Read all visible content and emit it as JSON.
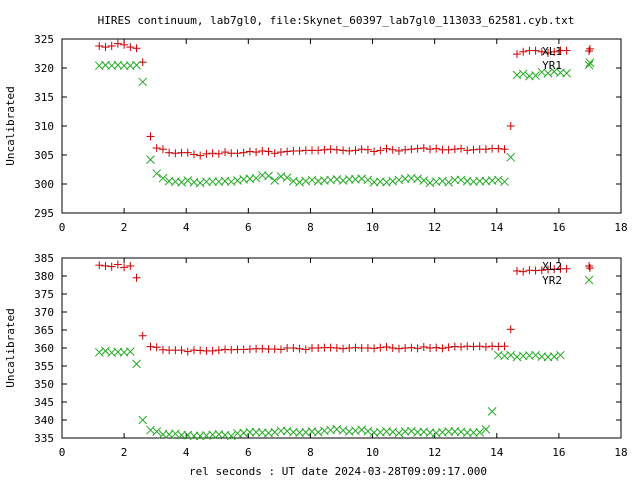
{
  "title": "HIRES continuum, lab7gl0, file:Skynet_60397_lab7gl0_113033_62581.cyb.txt",
  "xlabel": "rel seconds : UT date 2024-03-28T09:09:17.000",
  "colors": {
    "red": "#cc0000",
    "green": "#22aa22"
  },
  "chart_data": [
    {
      "type": "scatter",
      "ylabel": "Uncalibrated",
      "xlim": [
        0,
        18
      ],
      "ylim": [
        295,
        325
      ],
      "xticks": [
        "0",
        "2",
        "4",
        "6",
        "8",
        "10",
        "12",
        "14",
        "16",
        "18"
      ],
      "yticks": [
        "295",
        "300",
        "305",
        "310",
        "315",
        "320",
        "325"
      ],
      "legend_position": "top-right",
      "series": [
        {
          "name": "XL1",
          "marker": "+",
          "color": "#cc0000",
          "x": [
            1.2,
            1.4,
            1.6,
            1.8,
            2.0,
            2.2,
            2.4,
            2.6,
            2.85,
            3.05,
            3.25,
            3.45,
            3.65,
            3.85,
            4.05,
            4.25,
            4.45,
            4.65,
            4.85,
            5.05,
            5.25,
            5.45,
            5.65,
            5.85,
            6.05,
            6.25,
            6.45,
            6.65,
            6.85,
            7.05,
            7.25,
            7.45,
            7.65,
            7.85,
            8.05,
            8.25,
            8.45,
            8.65,
            8.85,
            9.05,
            9.25,
            9.45,
            9.65,
            9.85,
            10.05,
            10.25,
            10.45,
            10.65,
            10.85,
            11.05,
            11.25,
            11.45,
            11.65,
            11.85,
            12.05,
            12.25,
            12.45,
            12.65,
            12.85,
            13.05,
            13.25,
            13.45,
            13.65,
            13.85,
            14.05,
            14.25,
            14.45,
            14.65,
            14.85,
            15.05,
            15.25,
            15.45,
            15.65,
            15.85,
            16.05,
            16.25,
            17.0
          ],
          "y": [
            323.8,
            323.6,
            323.8,
            324.2,
            324.0,
            323.6,
            323.4,
            321.0,
            308.2,
            306.2,
            306.0,
            305.4,
            305.3,
            305.4,
            305.4,
            305.1,
            304.9,
            305.2,
            305.3,
            305.2,
            305.5,
            305.3,
            305.3,
            305.4,
            305.6,
            305.5,
            305.7,
            305.6,
            305.3,
            305.5,
            305.6,
            305.7,
            305.7,
            305.8,
            305.8,
            305.8,
            305.9,
            306.0,
            305.9,
            305.8,
            305.7,
            305.8,
            306.0,
            305.9,
            305.6,
            305.8,
            306.1,
            305.9,
            305.7,
            305.9,
            306.0,
            306.1,
            306.2,
            306.0,
            306.1,
            305.9,
            305.9,
            306.0,
            306.1,
            305.8,
            305.9,
            306.0,
            306.0,
            306.1,
            306.1,
            306.0,
            310.0,
            322.4,
            322.8,
            323.0,
            323.0,
            322.8,
            322.6,
            322.8,
            323.0,
            323.0,
            323.3
          ]
        },
        {
          "name": "YR1",
          "marker": "x",
          "color": "#22aa22",
          "x": [
            1.2,
            1.4,
            1.6,
            1.8,
            2.0,
            2.2,
            2.4,
            2.6,
            2.85,
            3.05,
            3.25,
            3.45,
            3.65,
            3.85,
            4.05,
            4.25,
            4.45,
            4.65,
            4.85,
            5.05,
            5.25,
            5.45,
            5.65,
            5.85,
            6.05,
            6.25,
            6.45,
            6.65,
            6.85,
            7.05,
            7.25,
            7.45,
            7.65,
            7.85,
            8.05,
            8.25,
            8.45,
            8.65,
            8.85,
            9.05,
            9.25,
            9.45,
            9.65,
            9.85,
            10.05,
            10.25,
            10.45,
            10.65,
            10.85,
            11.05,
            11.25,
            11.45,
            11.65,
            11.85,
            12.05,
            12.25,
            12.45,
            12.65,
            12.85,
            13.05,
            13.25,
            13.45,
            13.65,
            13.85,
            14.05,
            14.25,
            14.45,
            14.65,
            14.85,
            15.05,
            15.25,
            15.45,
            15.65,
            15.85,
            16.05,
            16.25,
            17.0
          ],
          "y": [
            320.4,
            320.5,
            320.4,
            320.5,
            320.4,
            320.4,
            320.5,
            317.6,
            304.2,
            301.8,
            301.0,
            300.5,
            300.4,
            300.3,
            300.6,
            300.3,
            300.2,
            300.4,
            300.4,
            300.4,
            300.5,
            300.4,
            300.6,
            300.8,
            300.9,
            301.0,
            301.5,
            301.4,
            300.6,
            301.3,
            301.1,
            300.5,
            300.3,
            300.5,
            300.7,
            300.5,
            300.6,
            300.7,
            300.8,
            300.6,
            300.8,
            300.8,
            300.9,
            300.7,
            300.3,
            300.4,
            300.3,
            300.5,
            300.7,
            300.9,
            301.0,
            300.9,
            300.6,
            300.2,
            300.4,
            300.5,
            300.3,
            300.7,
            300.7,
            300.5,
            300.4,
            300.5,
            300.5,
            300.6,
            300.7,
            300.4,
            304.6,
            318.8,
            319.0,
            318.6,
            318.7,
            319.3,
            319.1,
            319.4,
            319.2,
            319.1,
            320.9
          ]
        }
      ]
    },
    {
      "type": "scatter",
      "ylabel": "Uncalibrated",
      "xlim": [
        0,
        18
      ],
      "ylim": [
        335,
        385
      ],
      "xticks": [
        "0",
        "2",
        "4",
        "6",
        "8",
        "10",
        "12",
        "14",
        "16",
        "18"
      ],
      "yticks": [
        "335",
        "340",
        "345",
        "350",
        "355",
        "360",
        "365",
        "370",
        "375",
        "380",
        "385"
      ],
      "legend_position": "top-right",
      "series": [
        {
          "name": "XL2",
          "marker": "+",
          "color": "#cc0000",
          "x": [
            1.2,
            1.4,
            1.6,
            1.8,
            2.0,
            2.2,
            2.4,
            2.6,
            2.85,
            3.05,
            3.25,
            3.45,
            3.65,
            3.85,
            4.05,
            4.25,
            4.45,
            4.65,
            4.85,
            5.05,
            5.25,
            5.45,
            5.65,
            5.85,
            6.05,
            6.25,
            6.45,
            6.65,
            6.85,
            7.05,
            7.25,
            7.45,
            7.65,
            7.85,
            8.05,
            8.25,
            8.45,
            8.65,
            8.85,
            9.05,
            9.25,
            9.45,
            9.65,
            9.85,
            10.05,
            10.25,
            10.45,
            10.65,
            10.85,
            11.05,
            11.25,
            11.45,
            11.65,
            11.85,
            12.05,
            12.25,
            12.45,
            12.65,
            12.85,
            13.05,
            13.25,
            13.45,
            13.65,
            13.85,
            14.05,
            14.25,
            14.45,
            14.65,
            14.85,
            15.05,
            15.25,
            15.45,
            15.65,
            15.85,
            16.05,
            16.25,
            17.0
          ],
          "y": [
            383.0,
            382.8,
            382.6,
            383.2,
            382.4,
            382.8,
            379.5,
            363.4,
            360.4,
            360.2,
            359.5,
            359.4,
            359.4,
            359.4,
            359.0,
            359.4,
            359.3,
            359.2,
            359.2,
            359.4,
            359.6,
            359.5,
            359.6,
            359.6,
            359.7,
            359.8,
            359.8,
            359.7,
            359.7,
            359.6,
            360.0,
            360.0,
            359.8,
            359.6,
            360.0,
            360.0,
            360.1,
            360.1,
            360.0,
            359.8,
            360.0,
            360.1,
            360.0,
            360.0,
            359.9,
            360.1,
            360.3,
            360.0,
            359.8,
            360.0,
            360.1,
            359.9,
            360.3,
            360.0,
            360.1,
            359.9,
            360.2,
            360.4,
            360.3,
            360.5,
            360.4,
            360.5,
            360.3,
            360.5,
            360.4,
            360.5,
            365.2,
            381.4,
            381.2,
            381.6,
            381.5,
            381.6,
            381.8,
            381.9,
            382.0,
            382.0,
            382.2
          ]
        },
        {
          "name": "YR2",
          "marker": "x",
          "color": "#22aa22",
          "x": [
            1.2,
            1.4,
            1.6,
            1.8,
            2.0,
            2.2,
            2.4,
            2.6,
            2.85,
            3.05,
            3.25,
            3.45,
            3.65,
            3.85,
            4.05,
            4.25,
            4.45,
            4.65,
            4.85,
            5.05,
            5.25,
            5.45,
            5.65,
            5.85,
            6.05,
            6.25,
            6.45,
            6.65,
            6.85,
            7.05,
            7.25,
            7.45,
            7.65,
            7.85,
            8.05,
            8.25,
            8.45,
            8.65,
            8.85,
            9.05,
            9.25,
            9.45,
            9.65,
            9.85,
            10.05,
            10.25,
            10.45,
            10.65,
            10.85,
            11.05,
            11.25,
            11.45,
            11.65,
            11.85,
            12.05,
            12.25,
            12.45,
            12.65,
            12.85,
            13.05,
            13.25,
            13.45,
            13.65,
            13.85,
            14.05,
            14.25,
            14.45,
            14.65,
            14.85,
            15.05,
            15.25,
            15.45,
            15.65,
            15.85,
            16.05
          ],
          "y": [
            358.8,
            359.2,
            358.7,
            358.9,
            358.8,
            359.0,
            355.6,
            340.0,
            337.2,
            336.8,
            336.0,
            336.0,
            336.2,
            335.8,
            335.8,
            335.6,
            335.6,
            335.7,
            335.9,
            336.0,
            335.8,
            335.6,
            336.3,
            336.4,
            336.6,
            336.6,
            336.5,
            336.4,
            336.6,
            337.0,
            336.9,
            336.6,
            336.5,
            336.6,
            336.8,
            336.6,
            337.0,
            337.2,
            337.4,
            337.1,
            336.8,
            337.0,
            337.3,
            336.9,
            336.5,
            336.6,
            336.8,
            336.7,
            336.4,
            336.8,
            336.9,
            336.6,
            336.7,
            336.5,
            336.4,
            336.6,
            336.8,
            336.8,
            336.7,
            336.5,
            336.5,
            336.6,
            337.4,
            342.4,
            358.0,
            357.8,
            358.0,
            357.5,
            357.8,
            357.9,
            358.0,
            357.6,
            357.5,
            357.6,
            358.0
          ]
        }
      ]
    }
  ]
}
